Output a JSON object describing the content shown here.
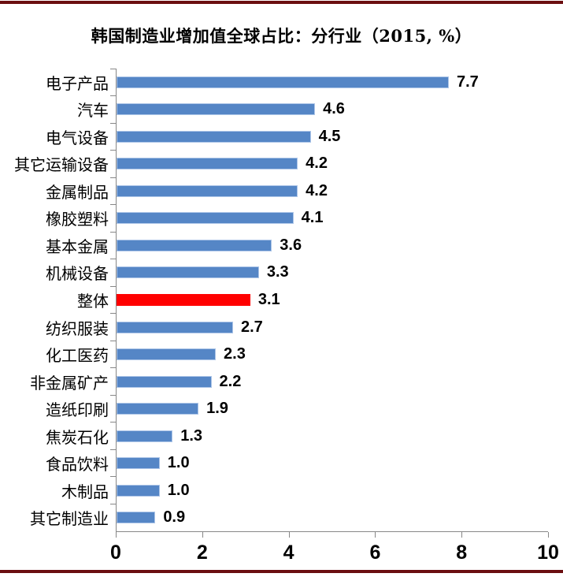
{
  "page": {
    "background": "#FFFFFF",
    "top_border_color": "#6B0E10",
    "bottom_border_color": "#6B0E10"
  },
  "chart_data": {
    "type": "bar",
    "orientation": "horizontal",
    "title": "韩国制造业增加值全球占比：分行业（2015, %）",
    "categories": [
      "电子产品",
      "汽车",
      "电气设备",
      "其它运输设备",
      "金属制品",
      "橡胶塑料",
      "基本金属",
      "机械设备",
      "整体",
      "纺织服装",
      "化工医药",
      "非金属矿产",
      "造纸印刷",
      "焦炭石化",
      "食品饮料",
      "木制品",
      "其它制造业"
    ],
    "values": [
      7.7,
      4.6,
      4.5,
      4.2,
      4.2,
      4.1,
      3.6,
      3.3,
      3.1,
      2.7,
      2.3,
      2.2,
      1.9,
      1.3,
      1.0,
      1.0,
      0.9
    ],
    "value_labels": [
      "7.7",
      "4.6",
      "4.5",
      "4.2",
      "4.2",
      "4.1",
      "3.6",
      "3.3",
      "3.1",
      "2.7",
      "2.3",
      "2.2",
      "1.9",
      "1.3",
      "1.0",
      "1.0",
      "0.9"
    ],
    "highlight_index": 8,
    "highlight_category": "整体",
    "bar_color": "#5586C6",
    "bar_border_color": "#AEC6E8",
    "highlight_color": "#FF0000",
    "axis_color": "#878787",
    "xlabel": "",
    "ylabel": "",
    "xlim": [
      0,
      10
    ],
    "x_ticks": [
      "0",
      "2",
      "4",
      "6",
      "8",
      "10"
    ],
    "grid": false,
    "legend": "none"
  }
}
